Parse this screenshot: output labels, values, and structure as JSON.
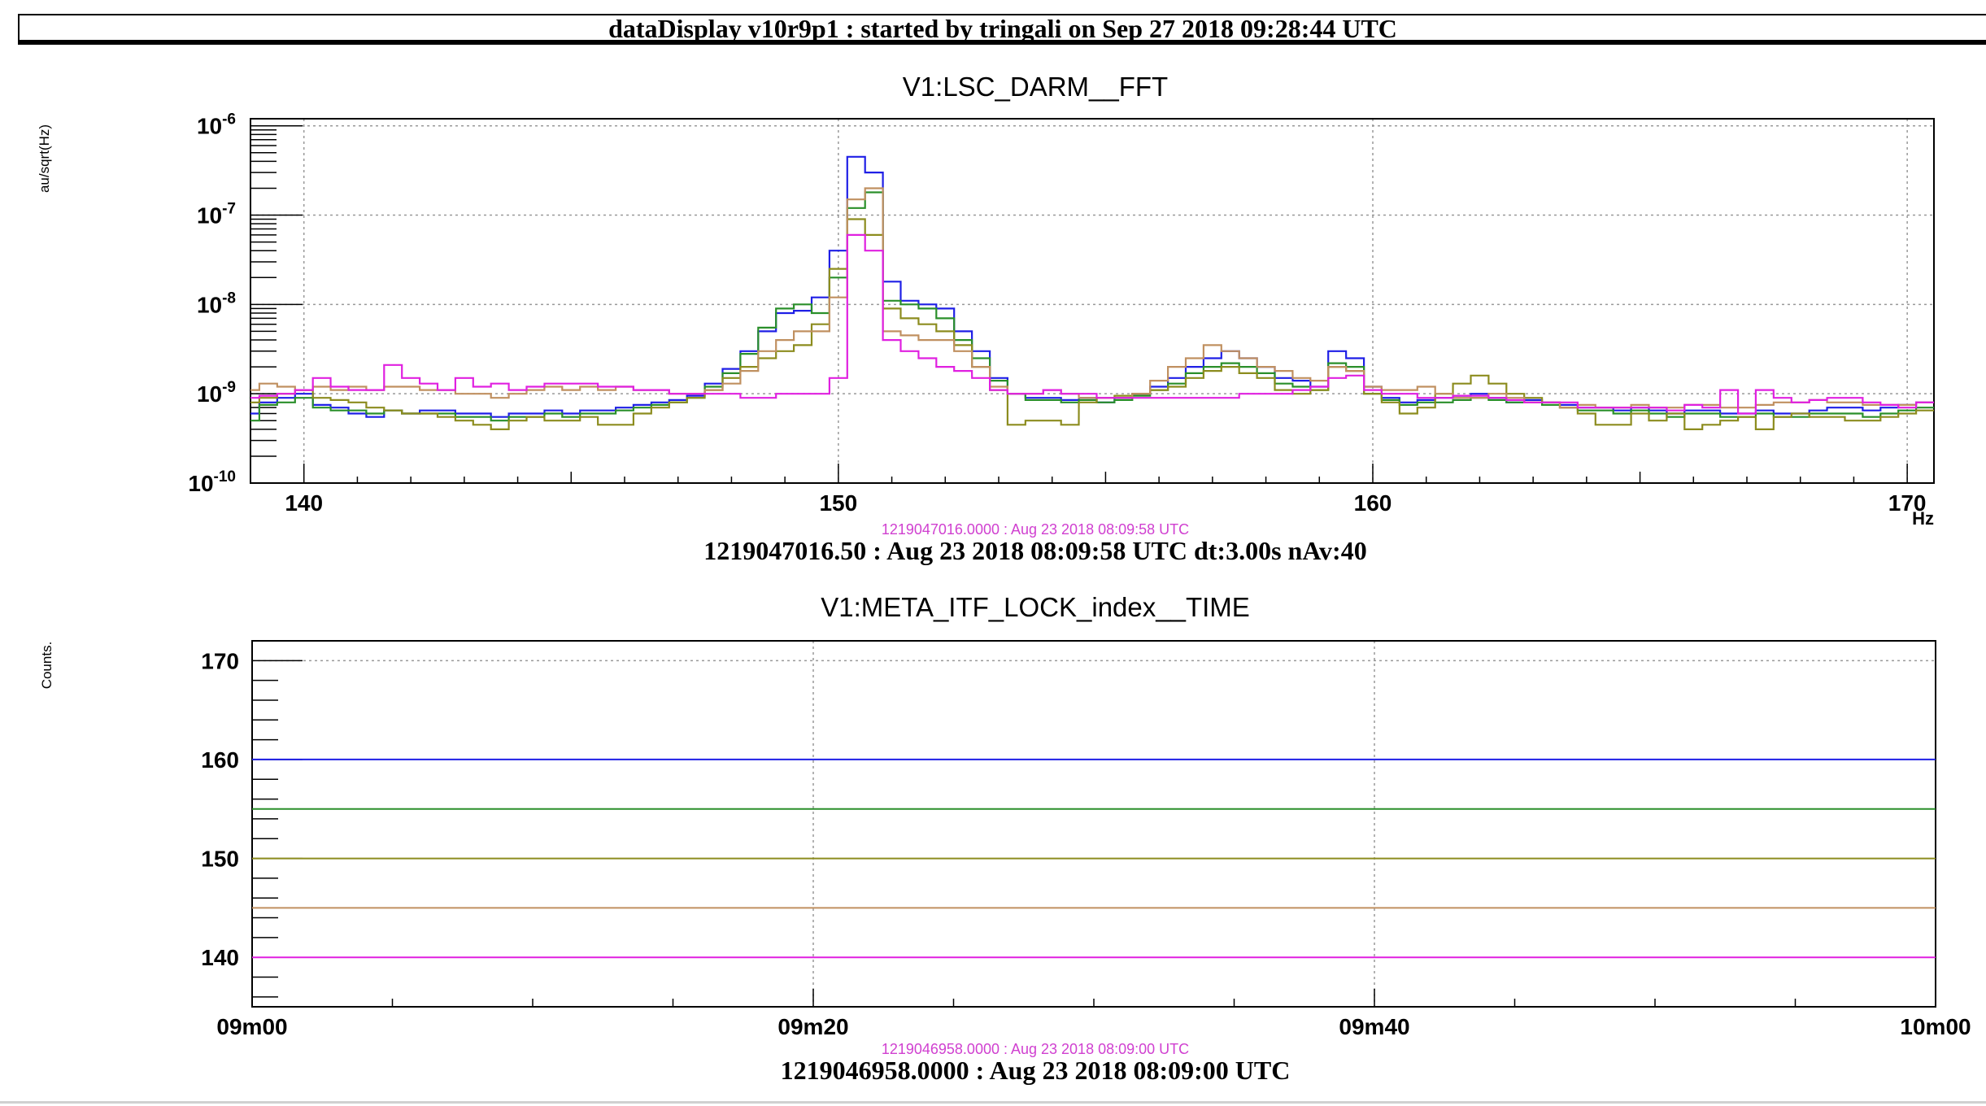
{
  "header": {
    "title": "dataDisplay v10r9p1 : started by tringali on Sep 27 2018 09:28:44 UTC"
  },
  "colors": {
    "blue": "#1f1fe6",
    "green": "#2a8f2a",
    "olive": "#8c8c1e",
    "tan": "#c09060",
    "magenta": "#e020e0"
  },
  "chart_data": [
    {
      "type": "line",
      "title": "V1:LSC_DARM__FFT",
      "ylabel": "au/sqrt(Hz)",
      "xlabel": "Hz",
      "yscale": "log",
      "xlim": [
        139,
        170.5
      ],
      "ylim": [
        1e-10,
        1.2e-06
      ],
      "grid": true,
      "x_ticks": [
        "140",
        "150",
        "160",
        "170"
      ],
      "y_ticks": [
        "10^-10",
        "10^-9",
        "10^-8",
        "10^-7",
        "10^-6"
      ],
      "timestamp_small": "1219047016.0000 : Aug 23 2018 08:09:58 UTC",
      "timestamp_main": "1219047016.50 : Aug 23 2018 08:09:58 UTC dt:3.00s nAv:40",
      "x": [
        139,
        139.333,
        139.667,
        140,
        140.333,
        140.667,
        141,
        141.333,
        141.667,
        142,
        142.333,
        142.667,
        143,
        143.333,
        143.667,
        144,
        144.333,
        144.667,
        145,
        145.333,
        145.667,
        146,
        146.333,
        146.667,
        147,
        147.333,
        147.667,
        148,
        148.333,
        148.667,
        149,
        149.333,
        149.667,
        150,
        150.333,
        150.667,
        151,
        151.333,
        151.667,
        152,
        152.333,
        152.667,
        153,
        153.333,
        153.667,
        154,
        154.333,
        154.667,
        155,
        155.333,
        155.667,
        156,
        156.333,
        156.667,
        157,
        157.333,
        157.667,
        158,
        158.333,
        158.667,
        159,
        159.333,
        159.667,
        160,
        160.333,
        160.667,
        161,
        161.333,
        161.667,
        162,
        162.333,
        162.667,
        163,
        163.333,
        163.667,
        164,
        164.333,
        164.667,
        165,
        165.333,
        165.667,
        166,
        166.333,
        166.667,
        167,
        167.333,
        167.667,
        168,
        168.333,
        168.667,
        169,
        169.333,
        169.667,
        170,
        170.333
      ],
      "series": [
        {
          "color": "#1f1fe6",
          "values": [
            6e-10,
            8e-10,
            9e-10,
            1e-09,
            7.5e-10,
            7e-10,
            6e-10,
            5.5e-10,
            6.5e-10,
            6e-10,
            6.5e-10,
            6.5e-10,
            6e-10,
            6e-10,
            5.5e-10,
            6e-10,
            6e-10,
            6.5e-10,
            6e-10,
            6.5e-10,
            6.5e-10,
            7e-10,
            7.5e-10,
            8e-10,
            8.5e-10,
            9.5e-10,
            1.3e-09,
            1.9e-09,
            3e-09,
            5e-09,
            8e-09,
            8.5e-09,
            1.2e-08,
            4e-08,
            4.5e-07,
            3e-07,
            1.8e-08,
            1.1e-08,
            1e-08,
            9e-09,
            5e-09,
            3e-09,
            1.5e-09,
            1e-09,
            9e-10,
            9e-10,
            8.5e-10,
            9e-10,
            8e-10,
            9e-10,
            1e-09,
            1.2e-09,
            1.5e-09,
            2e-09,
            2.5e-09,
            3e-09,
            2.5e-09,
            2e-09,
            1.5e-09,
            1.4e-09,
            1.2e-09,
            3e-09,
            2.5e-09,
            1.2e-09,
            9e-10,
            8e-10,
            8.5e-10,
            9e-10,
            9.5e-10,
            1e-09,
            9e-10,
            8e-10,
            8.5e-10,
            8e-10,
            7.5e-10,
            7e-10,
            7e-10,
            6.5e-10,
            7e-10,
            6.5e-10,
            6e-10,
            6.5e-10,
            6.5e-10,
            6e-10,
            6e-10,
            6.5e-10,
            6e-10,
            6e-10,
            6.5e-10,
            7e-10,
            7e-10,
            6.5e-10,
            7e-10,
            7.5e-10,
            8e-10
          ]
        },
        {
          "color": "#2a8f2a",
          "values": [
            5e-10,
            7.5e-10,
            8e-10,
            9e-10,
            7e-10,
            6.5e-10,
            6.5e-10,
            6e-10,
            6.5e-10,
            6e-10,
            6e-10,
            6e-10,
            5.5e-10,
            5.5e-10,
            5e-10,
            5.5e-10,
            5.5e-10,
            6e-10,
            5.5e-10,
            6e-10,
            6e-10,
            6.5e-10,
            7e-10,
            7.5e-10,
            8e-10,
            9e-10,
            1.2e-09,
            1.7e-09,
            2.8e-09,
            5.5e-09,
            9e-09,
            1e-08,
            8e-09,
            2e-08,
            1.2e-07,
            1.8e-07,
            1.1e-08,
            1e-08,
            9e-09,
            7e-09,
            4e-09,
            2.5e-09,
            1.4e-09,
            1e-09,
            8.5e-10,
            8.5e-10,
            8e-10,
            8.5e-10,
            8e-10,
            8.5e-10,
            9.5e-10,
            1.1e-09,
            1.3e-09,
            1.7e-09,
            2e-09,
            2.2e-09,
            2e-09,
            1.7e-09,
            1.3e-09,
            1.2e-09,
            1.1e-09,
            2.2e-09,
            2e-09,
            1e-09,
            8.5e-10,
            7.5e-10,
            8e-10,
            8e-10,
            8.5e-10,
            9e-10,
            8.5e-10,
            8e-10,
            8e-10,
            7.5e-10,
            7e-10,
            6.5e-10,
            6.5e-10,
            6e-10,
            6.5e-10,
            6e-10,
            5.5e-10,
            6e-10,
            6e-10,
            5.5e-10,
            5.5e-10,
            6e-10,
            5.5e-10,
            5.5e-10,
            6e-10,
            6e-10,
            6e-10,
            5.5e-10,
            6e-10,
            6.5e-10,
            7e-10
          ]
        },
        {
          "color": "#8c8c1e",
          "values": [
            8e-10,
            9e-10,
            1e-09,
            1.1e-09,
            9e-10,
            8.5e-10,
            8e-10,
            7e-10,
            6.5e-10,
            6e-10,
            6e-10,
            5.5e-10,
            5e-10,
            4.5e-10,
            4e-10,
            5e-10,
            5.5e-10,
            5e-10,
            5e-10,
            5.5e-10,
            4.5e-10,
            4.5e-10,
            6e-10,
            7e-10,
            8e-10,
            9e-10,
            1.1e-09,
            1.5e-09,
            2e-09,
            2.5e-09,
            3e-09,
            3.5e-09,
            6e-09,
            2.5e-08,
            9e-08,
            6e-08,
            9e-09,
            7e-09,
            6e-09,
            5e-09,
            3.5e-09,
            2e-09,
            1.1e-09,
            4.5e-10,
            5e-10,
            5e-10,
            4.5e-10,
            8e-10,
            9e-10,
            9.5e-10,
            1e-09,
            1.1e-09,
            1.2e-09,
            1.5e-09,
            1.8e-09,
            2e-09,
            1.7e-09,
            1.5e-09,
            1.1e-09,
            1e-09,
            1.1e-09,
            2e-09,
            1.8e-09,
            1e-09,
            8e-10,
            6e-10,
            7e-10,
            1e-09,
            1.3e-09,
            1.6e-09,
            1.3e-09,
            1e-09,
            9e-10,
            8e-10,
            7e-10,
            6e-10,
            4.5e-10,
            4.5e-10,
            6e-10,
            5e-10,
            6e-10,
            4e-10,
            4.5e-10,
            5e-10,
            5.5e-10,
            4e-10,
            5.5e-10,
            6e-10,
            5.5e-10,
            5.5e-10,
            5e-10,
            5e-10,
            5.5e-10,
            6e-10,
            6.5e-10
          ]
        },
        {
          "color": "#c09060",
          "values": [
            1.1e-09,
            1.3e-09,
            1.2e-09,
            1.1e-09,
            1.2e-09,
            1.1e-09,
            1.2e-09,
            1.1e-09,
            1.2e-09,
            1.2e-09,
            1.1e-09,
            1.1e-09,
            1e-09,
            1e-09,
            9e-10,
            1e-09,
            1.1e-09,
            1.2e-09,
            1.1e-09,
            1.2e-09,
            1.1e-09,
            1.2e-09,
            1.1e-09,
            1.1e-09,
            1e-09,
            1e-09,
            1.1e-09,
            1.3e-09,
            1.8e-09,
            3e-09,
            4e-09,
            5e-09,
            5e-09,
            1.2e-08,
            1.5e-07,
            2e-07,
            5e-09,
            4.5e-09,
            4e-09,
            4e-09,
            3e-09,
            2e-09,
            1.2e-09,
            1e-09,
            1e-09,
            1.1e-09,
            1e-09,
            9e-10,
            9e-10,
            9e-10,
            1e-09,
            1.4e-09,
            2e-09,
            2.5e-09,
            3.5e-09,
            3e-09,
            2.5e-09,
            2e-09,
            1.8e-09,
            1.5e-09,
            1.4e-09,
            2e-09,
            1.8e-09,
            1.2e-09,
            1.1e-09,
            1.1e-09,
            1.2e-09,
            1e-09,
            9e-10,
            9e-10,
            1e-09,
            9e-10,
            8e-10,
            8e-10,
            7e-10,
            7.5e-10,
            7e-10,
            7e-10,
            7.5e-10,
            7e-10,
            7e-10,
            7.5e-10,
            7.5e-10,
            7e-10,
            7e-10,
            7.5e-10,
            8e-10,
            8e-10,
            8.5e-10,
            8e-10,
            8e-10,
            7.5e-10,
            7.5e-10,
            7.5e-10,
            8e-10
          ]
        },
        {
          "color": "#e020e0",
          "values": [
            9e-10,
            9.5e-10,
            1e-09,
            1.1e-09,
            1.5e-09,
            1.2e-09,
            1.1e-09,
            1.1e-09,
            2.1e-09,
            1.5e-09,
            1.3e-09,
            1.1e-09,
            1.5e-09,
            1.2e-09,
            1.3e-09,
            1.1e-09,
            1.2e-09,
            1.3e-09,
            1.3e-09,
            1.3e-09,
            1.2e-09,
            1.2e-09,
            1.1e-09,
            1.1e-09,
            1e-09,
            1e-09,
            1e-09,
            1e-09,
            9e-10,
            9e-10,
            1e-09,
            1e-09,
            1e-09,
            1.5e-09,
            6e-08,
            4e-08,
            4e-09,
            3e-09,
            2.5e-09,
            2e-09,
            1.8e-09,
            1.5e-09,
            1.1e-09,
            1e-09,
            1e-09,
            1.1e-09,
            1e-09,
            1e-09,
            9e-10,
            9e-10,
            9e-10,
            9e-10,
            9e-10,
            9e-10,
            9e-10,
            9e-10,
            1e-09,
            1e-09,
            1e-09,
            1.1e-09,
            1.2e-09,
            1.5e-09,
            1.6e-09,
            1.1e-09,
            1e-09,
            1e-09,
            9e-10,
            9e-10,
            9.5e-10,
            9.5e-10,
            9e-10,
            8.5e-10,
            8e-10,
            8e-10,
            8e-10,
            7e-10,
            7e-10,
            7e-10,
            7e-10,
            7e-10,
            6.5e-10,
            7.5e-10,
            7e-10,
            1.1e-09,
            6e-10,
            1.1e-09,
            9e-10,
            8e-10,
            8.5e-10,
            9e-10,
            9e-10,
            8e-10,
            7.5e-10,
            7e-10,
            8e-10
          ]
        }
      ]
    },
    {
      "type": "line",
      "title": "V1:META_ITF_LOCK_index__TIME",
      "ylabel": "Counts.",
      "xlim": [
        0,
        60
      ],
      "ylim": [
        135,
        172
      ],
      "grid": true,
      "x_ticks": [
        "09m00",
        "09m20",
        "09m40",
        "10m00"
      ],
      "y_ticks": [
        "140",
        "150",
        "160",
        "170"
      ],
      "timestamp_small": "1219046958.0000 : Aug 23 2018 08:09:00 UTC",
      "timestamp_main": "1219046958.0000 : Aug 23 2018 08:09:00 UTC",
      "series": [
        {
          "color": "#1f1fe6",
          "x": [
            0,
            60
          ],
          "values": [
            160,
            160
          ]
        },
        {
          "color": "#2a8f2a",
          "x": [
            0,
            60
          ],
          "values": [
            155,
            155
          ]
        },
        {
          "color": "#8c8c1e",
          "x": [
            0,
            60
          ],
          "values": [
            150,
            150
          ]
        },
        {
          "color": "#c09060",
          "x": [
            0,
            60
          ],
          "values": [
            145,
            145
          ]
        },
        {
          "color": "#e020e0",
          "x": [
            0,
            60
          ],
          "values": [
            140,
            140
          ]
        }
      ]
    }
  ]
}
